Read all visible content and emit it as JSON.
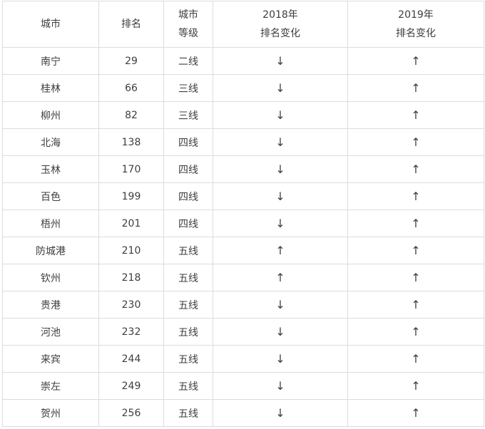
{
  "headers": [
    {
      "line1": "城市",
      "line2": ""
    },
    {
      "line1": "排名",
      "line2": ""
    },
    {
      "line1": "城市",
      "line2": "等级"
    },
    {
      "line1": "2018年",
      "line2": "排名变化"
    },
    {
      "line1": "2019年",
      "line2": "排名变化"
    }
  ],
  "rows": [
    {
      "city": "南宁",
      "rank": "29",
      "tier": "二线",
      "c2018": "↓",
      "c2019": "↑"
    },
    {
      "city": "桂林",
      "rank": "66",
      "tier": "三线",
      "c2018": "↓",
      "c2019": "↑"
    },
    {
      "city": "柳州",
      "rank": "82",
      "tier": "三线",
      "c2018": "↓",
      "c2019": "↑"
    },
    {
      "city": "北海",
      "rank": "138",
      "tier": "四线",
      "c2018": "↓",
      "c2019": "↑"
    },
    {
      "city": "玉林",
      "rank": "170",
      "tier": "四线",
      "c2018": "↓",
      "c2019": "↑"
    },
    {
      "city": "百色",
      "rank": "199",
      "tier": "四线",
      "c2018": "↓",
      "c2019": "↑"
    },
    {
      "city": "梧州",
      "rank": "201",
      "tier": "四线",
      "c2018": "↓",
      "c2019": "↑"
    },
    {
      "city": "防城港",
      "rank": "210",
      "tier": "五线",
      "c2018": "↑",
      "c2019": "↑"
    },
    {
      "city": "钦州",
      "rank": "218",
      "tier": "五线",
      "c2018": "↑",
      "c2019": "↑"
    },
    {
      "city": "贵港",
      "rank": "230",
      "tier": "五线",
      "c2018": "↓",
      "c2019": "↑"
    },
    {
      "city": "河池",
      "rank": "232",
      "tier": "五线",
      "c2018": "↓",
      "c2019": "↑"
    },
    {
      "city": "来宾",
      "rank": "244",
      "tier": "五线",
      "c2018": "↓",
      "c2019": "↑"
    },
    {
      "city": "崇左",
      "rank": "249",
      "tier": "五线",
      "c2018": "↓",
      "c2019": "↑"
    },
    {
      "city": "贺州",
      "rank": "256",
      "tier": "五线",
      "c2018": "↓",
      "c2019": "↑"
    }
  ]
}
